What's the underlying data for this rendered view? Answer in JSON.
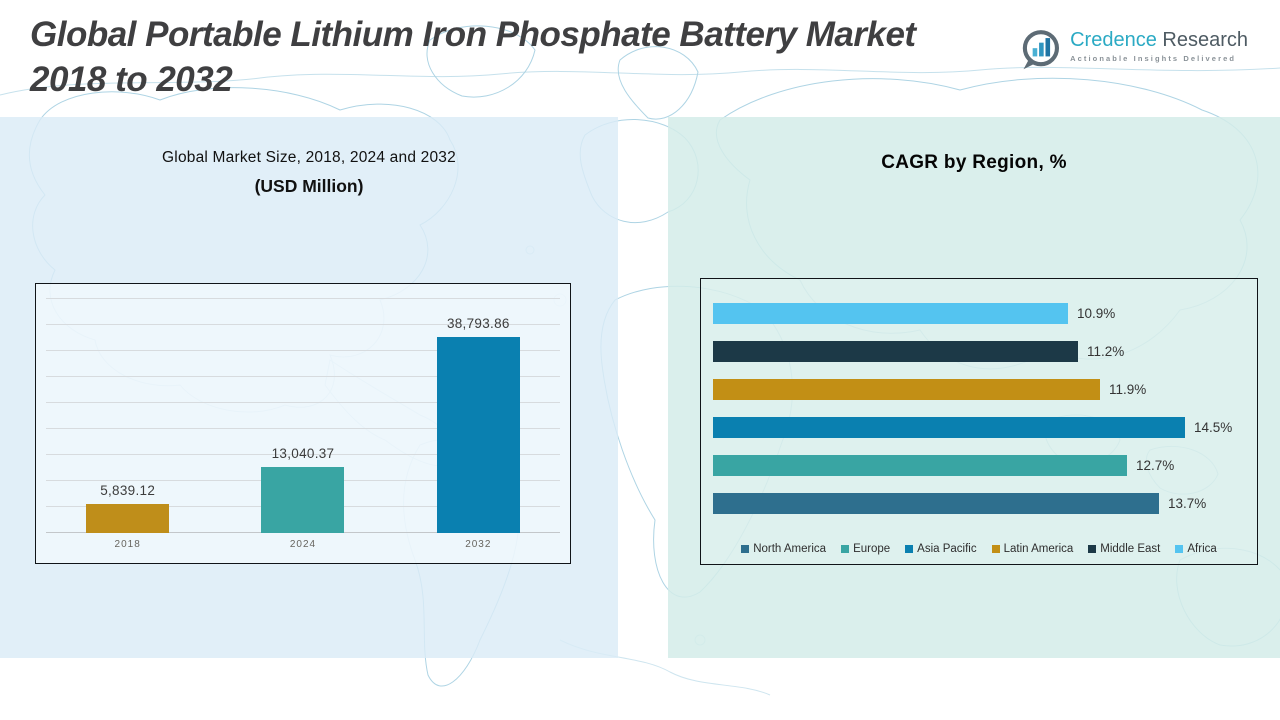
{
  "header": {
    "title_line1": "Global Portable Lithium Iron Phosphate Battery Market",
    "title_line2": "2018 to 2032"
  },
  "logo": {
    "brand_primary": "Credence",
    "brand_secondary": "Research",
    "tagline": "Actionable Insights Delivered",
    "icon": "bar-chart-bubble-icon",
    "brand_color": "#2baac4",
    "secondary_color": "#4e5b63"
  },
  "chart_data": [
    {
      "type": "bar",
      "title_line1": "Global Market Size, 2018, 2024 and 2032",
      "title_line2": "(USD Million)",
      "categories": [
        "2018",
        "2024",
        "2032"
      ],
      "values": [
        5839.12,
        13040.37,
        38793.86
      ],
      "labels": [
        "5,839.12",
        "13,040.37",
        "38,793.86"
      ],
      "colors": [
        "#bf8e1a",
        "#39a5a3",
        "#0a80b0"
      ],
      "ylim": [
        0,
        48500
      ],
      "grid": true,
      "grid_line_count": 9,
      "legend_position": "none"
    },
    {
      "type": "bar-horizontal",
      "title": "CAGR by Region, %",
      "categories": [
        "Africa",
        "Middle East",
        "Latin America",
        "Asia Pacific",
        "Europe",
        "North America"
      ],
      "values": [
        10.9,
        11.2,
        11.9,
        14.5,
        12.7,
        13.7
      ],
      "labels": [
        "10.9%",
        "11.2%",
        "11.9%",
        "14.5%",
        "12.7%",
        "13.7%"
      ],
      "colors": [
        "#54c4f0",
        "#1c3947",
        "#c28f15",
        "#0a80b0",
        "#39a5a3",
        "#2e6f8e"
      ],
      "xlim": [
        0,
        16.4
      ],
      "grid": false,
      "legend_position": "bottom",
      "legend": [
        {
          "label": "North America",
          "color": "#2e6f8e"
        },
        {
          "label": "Europe",
          "color": "#39a5a3"
        },
        {
          "label": "Asia Pacific",
          "color": "#0a80b0"
        },
        {
          "label": "Latin America",
          "color": "#c28f15"
        },
        {
          "label": "Middle East",
          "color": "#1c3947"
        },
        {
          "label": "Africa",
          "color": "#54c4f0"
        }
      ]
    }
  ]
}
